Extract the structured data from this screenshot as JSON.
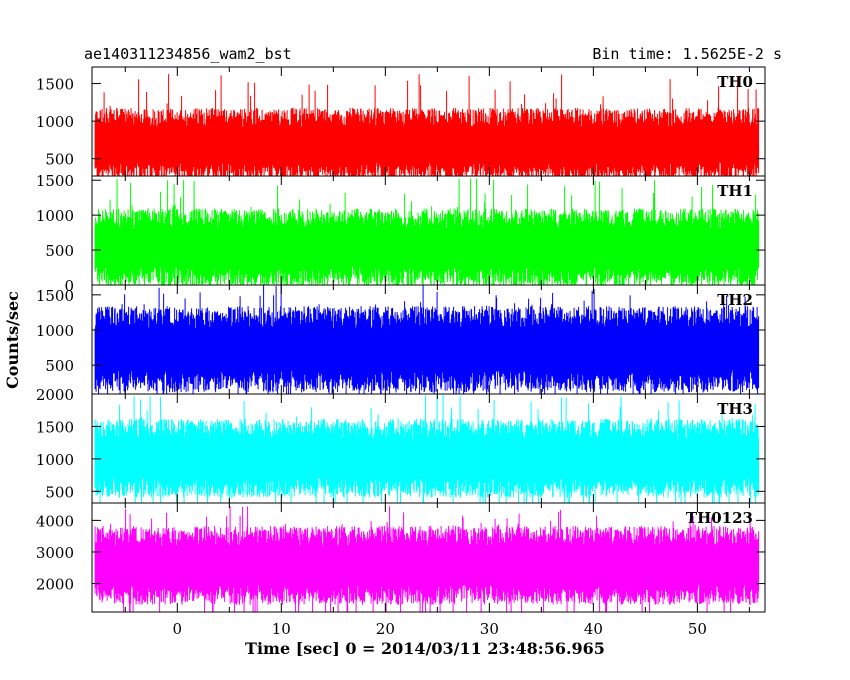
{
  "header": {
    "title_left": "ae140311234856_wam2_bst",
    "title_right": "Bin time: 1.5625E-2 s"
  },
  "chart_data": {
    "type": "line",
    "title": "ae140311234856_wam2_bst",
    "subtitle": "Bin time: 1.5625E-2 s",
    "xlabel": "Time [sec] 0 = 2014/03/11 23:48:56.965",
    "ylabel": "Counts/sec",
    "xlim": [
      -8.2,
      56.5
    ],
    "data_xrange": [
      -7.9,
      55.9
    ],
    "bin_time": 0.015625,
    "x_ticks": [
      0,
      10,
      20,
      30,
      40,
      50
    ],
    "grid": false,
    "panels": [
      {
        "name": "TH0",
        "color": "#ff0000",
        "ylim": [
          270,
          1720
        ],
        "yticks": [
          500,
          1000,
          1500
        ],
        "ytick_labels": [
          "500",
          "1000",
          "1500"
        ],
        "typical_range": [
          330,
          1050
        ],
        "peak": 1650
      },
      {
        "name": "TH1",
        "color": "#00ff00",
        "ylim": [
          0,
          1560
        ],
        "yticks": [
          0,
          500,
          1000,
          1500
        ],
        "ytick_labels": [
          "0",
          "500",
          "1000",
          "1500"
        ],
        "typical_range": [
          120,
          950
        ],
        "peak": 1540
      },
      {
        "name": "TH2",
        "color": "#0000ff",
        "ylim": [
          90,
          1640
        ],
        "yticks": [
          500,
          1000,
          1500
        ],
        "ytick_labels": [
          "500",
          "1000",
          "1500"
        ],
        "typical_range": [
          270,
          1180
        ],
        "peak": 1640
      },
      {
        "name": "TH3",
        "color": "#00ffff",
        "ylim": [
          320,
          2000
        ],
        "yticks": [
          500,
          1000,
          1500,
          2000
        ],
        "ytick_labels": [
          "500",
          "1000",
          "1500",
          "2000"
        ],
        "typical_range": [
          560,
          1460
        ],
        "peak": 2000
      },
      {
        "name": "TH0123",
        "color": "#ff00ff",
        "ylim": [
          1100,
          4550
        ],
        "yticks": [
          2000,
          3000,
          4000
        ],
        "ytick_labels": [
          "2000",
          "3000",
          "4000"
        ],
        "typical_range": [
          1650,
          3500
        ],
        "peak": 4450
      }
    ]
  }
}
